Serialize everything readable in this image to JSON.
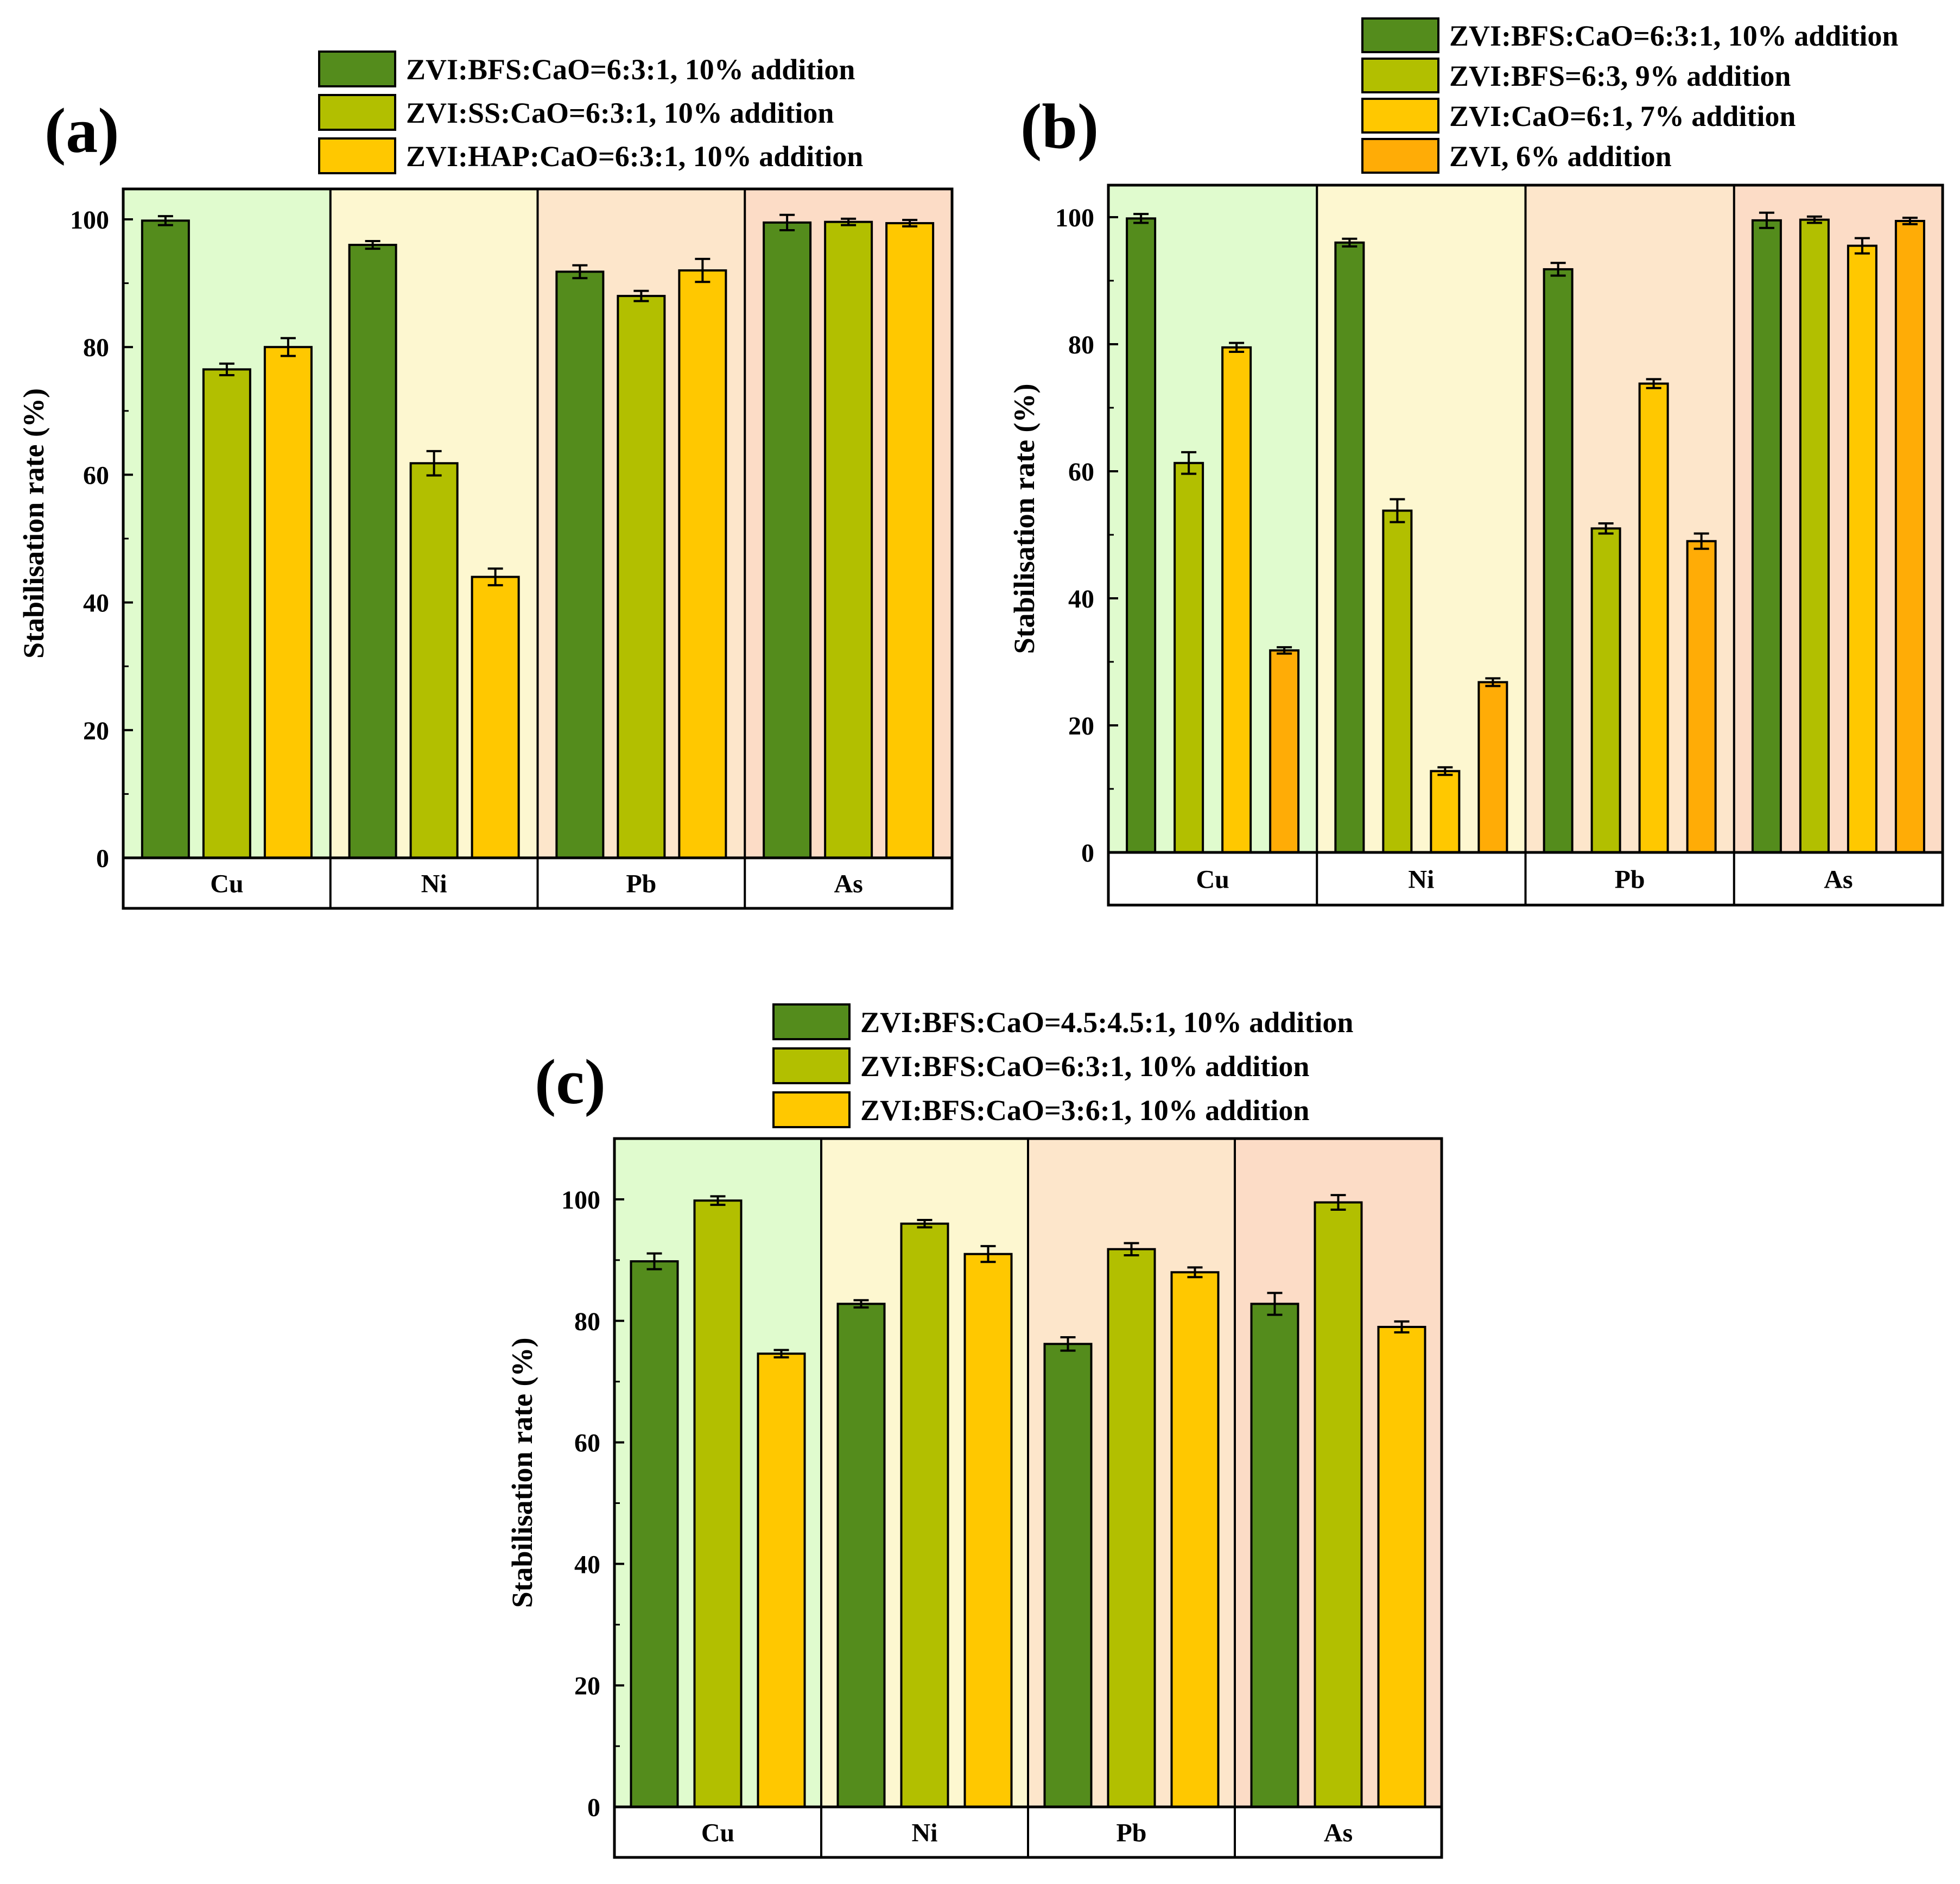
{
  "figure": {
    "colors": {
      "dark_green": "#548c1c",
      "olive": "#b2bf00",
      "yellow": "#ffc800",
      "orange": "#ffac06",
      "bg_cu": "#e0fbce",
      "bg_ni": "#fdf7d0",
      "bg_pb": "#fde6cb",
      "bg_as": "#fcdcc6",
      "frame": "#000000"
    }
  },
  "chart_data": [
    {
      "type": "bar",
      "panel_label": "(a)",
      "ylabel": "Stabilisation rate  (%)",
      "xlabel": "",
      "ylim": [
        0,
        105
      ],
      "yticks": [
        "0",
        "20",
        "40",
        "60",
        "80",
        "100"
      ],
      "categories": [
        "Cu",
        "Ni",
        "Pb",
        "As"
      ],
      "series": [
        {
          "name": "ZVI:BFS:CaO=6:3:1, 10% addition",
          "color": "#548c1c",
          "values": [
            99.8,
            96.0,
            91.8,
            99.5
          ],
          "errors": [
            0.7,
            0.6,
            1.0,
            1.2
          ]
        },
        {
          "name": "ZVI:SS:CaO=6:3:1, 10% addition",
          "color": "#b2bf00",
          "values": [
            76.5,
            61.8,
            88.0,
            99.6
          ],
          "errors": [
            0.9,
            1.9,
            0.8,
            0.5
          ]
        },
        {
          "name": "ZVI:HAP:CaO=6:3:1, 10% addition",
          "color": "#ffc800",
          "values": [
            80.0,
            44.0,
            92.0,
            99.4
          ],
          "errors": [
            1.4,
            1.3,
            1.8,
            0.5
          ]
        }
      ]
    },
    {
      "type": "bar",
      "panel_label": "(b)",
      "ylabel": "Stabilisation rate  (%)",
      "xlabel": "",
      "ylim": [
        0,
        105
      ],
      "yticks": [
        "0",
        "20",
        "40",
        "60",
        "80",
        "100"
      ],
      "categories": [
        "Cu",
        "Ni",
        "Pb",
        "As"
      ],
      "series": [
        {
          "name": "ZVI:BFS:CaO=6:3:1, 10% addition",
          "color": "#548c1c",
          "values": [
            99.8,
            96.0,
            91.8,
            99.5
          ],
          "errors": [
            0.7,
            0.6,
            1.0,
            1.2
          ]
        },
        {
          "name": "ZVI:BFS=6:3, 9% addition",
          "color": "#b2bf00",
          "values": [
            61.3,
            53.8,
            51.0,
            99.6
          ],
          "errors": [
            1.7,
            1.8,
            0.8,
            0.5
          ]
        },
        {
          "name": "ZVI:CaO=6:1, 7% addition",
          "color": "#ffc800",
          "values": [
            79.5,
            12.8,
            73.8,
            95.5
          ],
          "errors": [
            0.7,
            0.6,
            0.7,
            1.2
          ]
        },
        {
          "name": "ZVI, 6% addition",
          "color": "#ffac06",
          "values": [
            31.8,
            26.8,
            49.0,
            99.4
          ],
          "errors": [
            0.5,
            0.6,
            1.2,
            0.5
          ]
        }
      ]
    },
    {
      "type": "bar",
      "panel_label": "(c)",
      "ylabel": "Stabilisation rate  (%)",
      "xlabel": "",
      "ylim": [
        0,
        110
      ],
      "yticks": [
        "0",
        "20",
        "40",
        "60",
        "80",
        "100"
      ],
      "categories": [
        "Cu",
        "Ni",
        "Pb",
        "As"
      ],
      "series": [
        {
          "name": "ZVI:BFS:CaO=4.5:4.5:1, 10% addition",
          "color": "#548c1c",
          "values": [
            89.8,
            82.8,
            76.2,
            82.8
          ],
          "errors": [
            1.3,
            0.6,
            1.1,
            1.8
          ]
        },
        {
          "name": "ZVI:BFS:CaO=6:3:1, 10% addition",
          "color": "#b2bf00",
          "values": [
            99.8,
            96.0,
            91.8,
            99.5
          ],
          "errors": [
            0.7,
            0.6,
            1.0,
            1.2
          ]
        },
        {
          "name": "ZVI:BFS:CaO=3:6:1, 10% addition",
          "color": "#ffc800",
          "values": [
            74.6,
            91.0,
            88.0,
            79.0
          ],
          "errors": [
            0.6,
            1.3,
            0.8,
            0.9
          ]
        }
      ]
    }
  ]
}
